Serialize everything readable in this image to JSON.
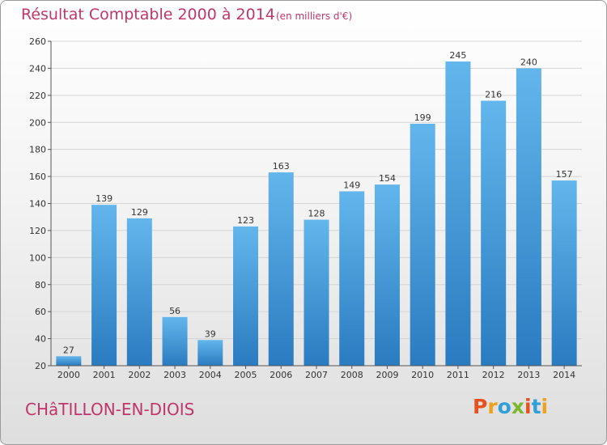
{
  "header": {
    "title": "Résultat Comptable 2000 à 2014",
    "unit": "(en milliers d'€)"
  },
  "footer": {
    "place": "CHâTILLON-EN-DIOIS",
    "logo_letters": [
      "P",
      "r",
      "o",
      "x",
      "i",
      "t",
      "i"
    ],
    "logo_colors": [
      "#e8501e",
      "#f0a11b",
      "#2e9fd9",
      "#7cb72e",
      "#e8501e",
      "#2e9fd9",
      "#f0a11b"
    ]
  },
  "colors": {
    "accent": "#c0356b",
    "bar_light": "#63b6ec",
    "bar_dark": "#2a7bc0"
  },
  "chart_data": {
    "type": "bar",
    "title": "Résultat Comptable 2000 à 2014",
    "subtitle": "(en milliers d'€)",
    "categories": [
      "2000",
      "2001",
      "2002",
      "2003",
      "2004",
      "2005",
      "2006",
      "2007",
      "2008",
      "2009",
      "2010",
      "2011",
      "2012",
      "2013",
      "2014"
    ],
    "values": [
      27,
      139,
      129,
      56,
      39,
      123,
      163,
      128,
      149,
      154,
      199,
      245,
      216,
      240,
      157
    ],
    "ylim": [
      20,
      260
    ],
    "yticks": [
      20,
      40,
      60,
      80,
      100,
      120,
      140,
      160,
      180,
      200,
      220,
      240,
      260
    ],
    "grid": true
  }
}
